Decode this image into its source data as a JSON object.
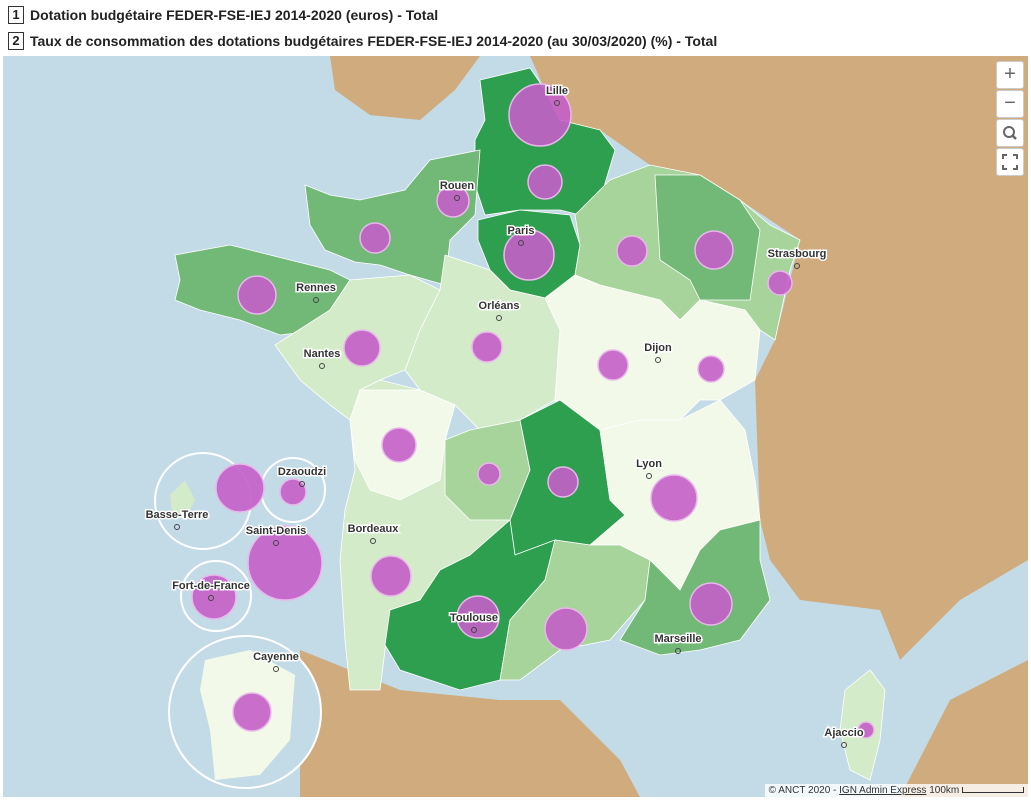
{
  "legend": {
    "items": [
      {
        "number": "1",
        "label": "Dotation budgétaire FEDER-FSE-IEJ 2014-2020 (euros) - Total"
      },
      {
        "number": "2",
        "label": "Taux de consommation des dotations budgétaires FEDER-FSE-IEJ 2014-2020 (au 30/03/2020) (%) - Total"
      }
    ]
  },
  "map": {
    "cities": [
      "Lille",
      "Rouen",
      "Paris",
      "Strasbourg",
      "Rennes",
      "Orléans",
      "Nantes",
      "Dijon",
      "Lyon",
      "Bordeaux",
      "Toulouse",
      "Marseille",
      "Ajaccio",
      "Basse-Terre",
      "Dzaoudzi",
      "Saint-Denis",
      "Fort-de-France",
      "Cayenne"
    ],
    "controls": [
      "+",
      "−"
    ],
    "attribution": {
      "copyright": "© ANCT 2020 - ",
      "source": "IGN Admin Express",
      "scale": "100km"
    }
  }
}
